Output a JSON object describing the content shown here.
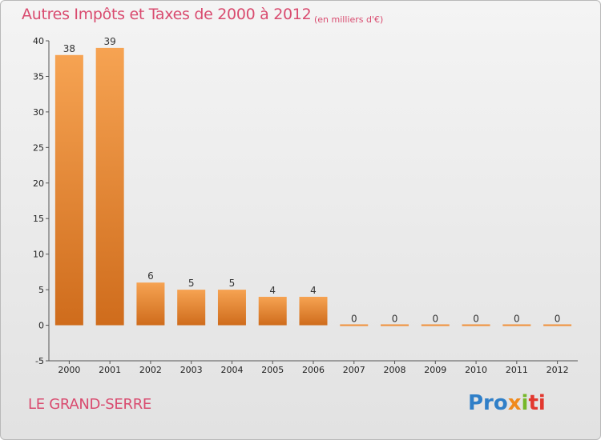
{
  "chart_data": {
    "type": "bar",
    "title": "Autres Impôts et Taxes de 2000 à 2012",
    "subtitle": "(en milliers d'€)",
    "categories": [
      "2000",
      "2001",
      "2002",
      "2003",
      "2004",
      "2005",
      "2006",
      "2007",
      "2008",
      "2009",
      "2010",
      "2011",
      "2012"
    ],
    "values": [
      38,
      39,
      6,
      5,
      5,
      4,
      4,
      0,
      0,
      0,
      0,
      0,
      0
    ],
    "value_labels": [
      "38",
      "39",
      "6",
      "5",
      "5",
      "4",
      "4",
      "0",
      "0",
      "0",
      "0",
      "0",
      "0"
    ],
    "ylim": [
      -5,
      40
    ],
    "yticks": [
      -5,
      0,
      5,
      10,
      15,
      20,
      25,
      30,
      35,
      40
    ],
    "ytick_labels": [
      "-5",
      "0",
      "5",
      "10",
      "15",
      "20",
      "25",
      "30",
      "35",
      "40"
    ],
    "xlabel": "",
    "ylabel": "",
    "grid": false,
    "bar_color": "#f0903a",
    "bar_color_dark": "#d0701e"
  },
  "footer": {
    "commune": "LE GRAND-SERRE",
    "logo_parts": [
      "Pro",
      "x",
      "i",
      "ti"
    ]
  },
  "colors": {
    "title": "#d94b6f",
    "logo_blue": "#2f7fc8",
    "logo_orange": "#f08a1c",
    "logo_green": "#76b82a",
    "logo_red": "#e2382f"
  }
}
